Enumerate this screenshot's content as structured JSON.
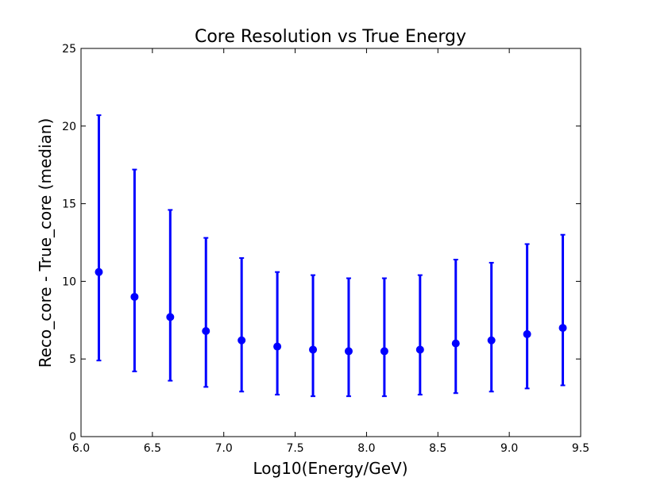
{
  "chart_data": {
    "type": "scatter",
    "title": "Core Resolution vs True Energy",
    "xlabel": "Log10(Energy/GeV)",
    "ylabel": "Reco_core - True_core (median)",
    "xlim": [
      6.0,
      9.5
    ],
    "ylim": [
      0,
      25
    ],
    "xticks": [
      "6.0",
      "6.5",
      "7.0",
      "7.5",
      "8.0",
      "8.5",
      "9.0",
      "9.5"
    ],
    "yticks": [
      "0",
      "5",
      "10",
      "15",
      "20",
      "25"
    ],
    "grid": false,
    "series_color": "#0000ff",
    "x": [
      6.125,
      6.375,
      6.625,
      6.875,
      7.125,
      7.375,
      7.625,
      7.875,
      8.125,
      8.375,
      8.625,
      8.875,
      9.125,
      9.375
    ],
    "y": [
      10.6,
      9.0,
      7.7,
      6.8,
      6.2,
      5.8,
      5.6,
      5.5,
      5.5,
      5.6,
      6.0,
      6.2,
      6.6,
      7.0
    ],
    "y_low": [
      4.9,
      4.2,
      3.6,
      3.2,
      2.9,
      2.7,
      2.6,
      2.6,
      2.6,
      2.7,
      2.8,
      2.9,
      3.1,
      3.3
    ],
    "y_high": [
      20.7,
      17.2,
      14.6,
      12.8,
      11.5,
      10.6,
      10.4,
      10.2,
      10.2,
      10.4,
      11.4,
      11.2,
      12.4,
      13.0
    ]
  }
}
